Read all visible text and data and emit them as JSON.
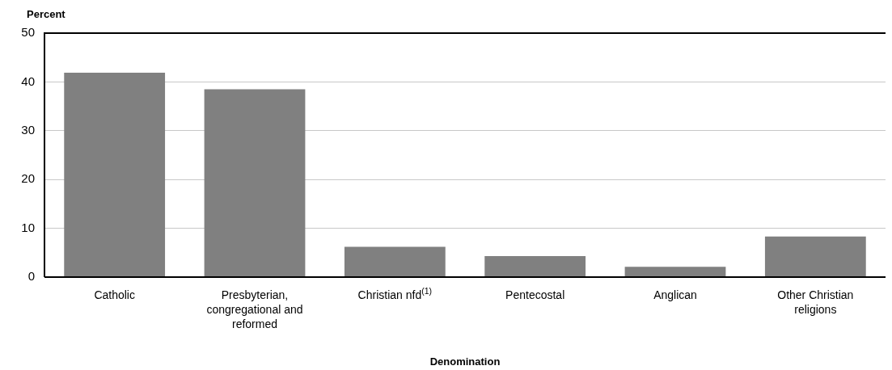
{
  "chart_data": {
    "type": "bar",
    "xlabel": "Denomination",
    "ylabel": "Percent",
    "categories": [
      "Catholic",
      "Presbyterian, congregational and reformed",
      "Christian nfd$^{(1)}$",
      "Pentecostal",
      "Anglican",
      "Other Christian religions"
    ],
    "values": [
      41.9,
      38.5,
      6.2,
      4.3,
      2.1,
      8.3
    ],
    "color": "#808080",
    "ylim": [
      0,
      50
    ],
    "yticks": [
      0,
      10,
      20,
      30,
      40,
      50
    ],
    "grid": "y",
    "legend": false
  }
}
